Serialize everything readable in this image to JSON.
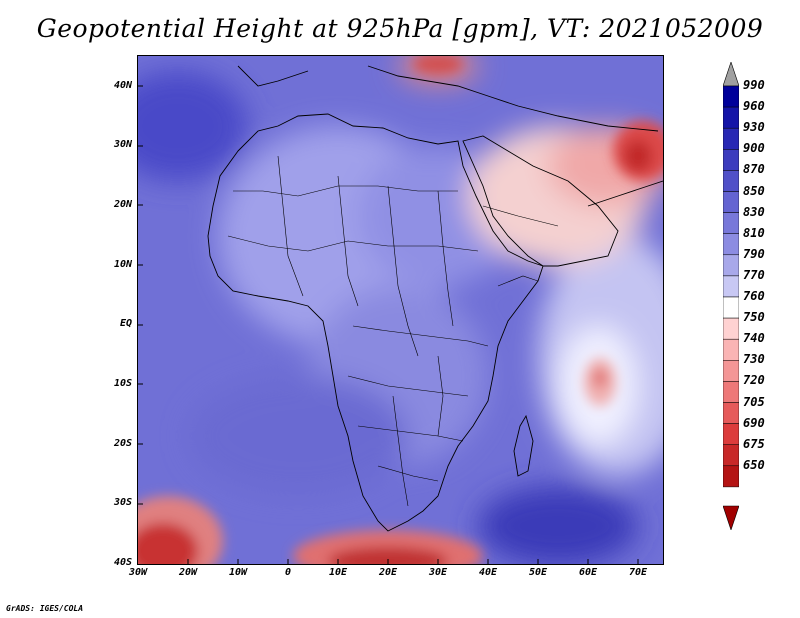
{
  "title": "Geopotential Height at 925hPa [gpm], VT: 2021052009",
  "credit": "GrADS: IGES/COLA",
  "map": {
    "lat_labels": [
      "40N",
      "30N",
      "20N",
      "10N",
      "EQ",
      "10S",
      "20S",
      "30S",
      "40S"
    ],
    "lon_labels": [
      "30W",
      "20W",
      "10W",
      "0",
      "10E",
      "20E",
      "30E",
      "40E",
      "50E",
      "60E",
      "70E"
    ],
    "lat_range": [
      -40,
      45
    ],
    "lon_range": [
      -30,
      75
    ]
  },
  "colorbar": {
    "labels": [
      "990",
      "960",
      "930",
      "900",
      "870",
      "850",
      "830",
      "810",
      "790",
      "770",
      "760",
      "750",
      "740",
      "730",
      "720",
      "705",
      "690",
      "675",
      "650"
    ],
    "colors": [
      "#00009a",
      "#1414a8",
      "#2828b4",
      "#3c3cbe",
      "#5050c8",
      "#6464d2",
      "#7878da",
      "#8c8ce2",
      "#a8a8ea",
      "#c8c8f4",
      "#ffffff",
      "#ffd2d2",
      "#fab4b4",
      "#f49696",
      "#ee7878",
      "#e65a5a",
      "#dc3c3c",
      "#c82828",
      "#b41414",
      "#a00000"
    ]
  }
}
